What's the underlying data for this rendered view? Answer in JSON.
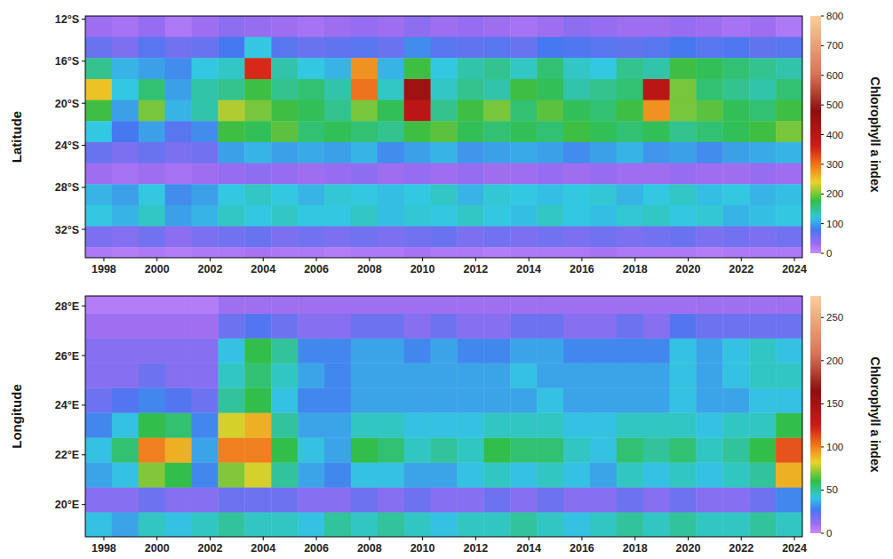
{
  "chart_data": [
    {
      "type": "heatmap",
      "y_label": "Latitude",
      "x": [
        1997.8,
        1998.8,
        1999.8,
        2000.8,
        2001.8,
        2002.8,
        2003.8,
        2004.8,
        2005.8,
        2006.8,
        2007.8,
        2008.8,
        2009.8,
        2010.8,
        2011.8,
        2012.8,
        2013.8,
        2014.8,
        2015.8,
        2016.8,
        2017.8,
        2018.8,
        2019.8,
        2020.8,
        2021.8,
        2022.8,
        2023.8
      ],
      "y": [
        -12.7,
        -14.7,
        -16.7,
        -18.7,
        -20.7,
        -22.7,
        -24.7,
        -26.7,
        -28.7,
        -30.7,
        -32.7,
        -34.7
      ],
      "values": [
        [
          30,
          25,
          35,
          20,
          30,
          40,
          35,
          30,
          25,
          30,
          35,
          30,
          40,
          30,
          35,
          30,
          25,
          30,
          40,
          35,
          30,
          30,
          35,
          30,
          25,
          30,
          20
        ],
        [
          60,
          50,
          70,
          55,
          60,
          80,
          120,
          70,
          60,
          65,
          70,
          60,
          90,
          70,
          65,
          70,
          60,
          80,
          75,
          70,
          65,
          70,
          80,
          70,
          75,
          65,
          70
        ],
        [
          150,
          110,
          100,
          90,
          120,
          130,
          350,
          140,
          120,
          110,
          280,
          110,
          180,
          120,
          140,
          150,
          130,
          160,
          130,
          120,
          150,
          140,
          180,
          170,
          160,
          150,
          140
        ],
        [
          250,
          120,
          160,
          100,
          140,
          150,
          180,
          150,
          160,
          140,
          300,
          130,
          450,
          130,
          150,
          140,
          180,
          170,
          140,
          150,
          160,
          400,
          200,
          160,
          150,
          140,
          160
        ],
        [
          180,
          100,
          200,
          110,
          140,
          220,
          200,
          180,
          170,
          150,
          200,
          170,
          400,
          150,
          180,
          200,
          160,
          190,
          170,
          160,
          180,
          280,
          200,
          190,
          170,
          160,
          180
        ],
        [
          120,
          80,
          100,
          70,
          90,
          180,
          170,
          190,
          160,
          170,
          160,
          150,
          180,
          190,
          170,
          160,
          170,
          160,
          180,
          170,
          160,
          170,
          150,
          160,
          170,
          180,
          200
        ],
        [
          60,
          50,
          60,
          50,
          55,
          100,
          110,
          100,
          105,
          100,
          110,
          90,
          100,
          110,
          95,
          100,
          105,
          100,
          90,
          100,
          110,
          95,
          100,
          90,
          100,
          105,
          110
        ],
        [
          30,
          25,
          30,
          25,
          30,
          35,
          40,
          35,
          30,
          35,
          40,
          30,
          35,
          30,
          35,
          30,
          30,
          35,
          30,
          35,
          30,
          30,
          35,
          30,
          30,
          35,
          30
        ],
        [
          110,
          100,
          120,
          90,
          100,
          120,
          130,
          120,
          110,
          125,
          120,
          115,
          120,
          130,
          110,
          125,
          120,
          115,
          120,
          125,
          110,
          120,
          130,
          115,
          120,
          110,
          115
        ],
        [
          120,
          110,
          130,
          100,
          110,
          130,
          120,
          130,
          120,
          120,
          130,
          115,
          125,
          120,
          130,
          120,
          115,
          130,
          120,
          115,
          125,
          130,
          120,
          125,
          110,
          115,
          120
        ],
        [
          50,
          45,
          55,
          40,
          50,
          55,
          60,
          50,
          55,
          50,
          55,
          50,
          55,
          60,
          50,
          55,
          50,
          55,
          50,
          55,
          50,
          55,
          60,
          50,
          55,
          50,
          55
        ],
        [
          20,
          15,
          20,
          15,
          20,
          20,
          25,
          20,
          20,
          15,
          20,
          20,
          25,
          20,
          20,
          15,
          20,
          20,
          20,
          25,
          20,
          20,
          20,
          15,
          20,
          20,
          20
        ]
      ],
      "xlim": [
        1997.3,
        2024.3
      ],
      "xticks": [
        1998,
        2000,
        2002,
        2004,
        2006,
        2008,
        2010,
        2012,
        2014,
        2016,
        2018,
        2020,
        2022,
        2024
      ],
      "ylim": [
        -34.7,
        -11.7
      ],
      "yticks": [
        {
          "value": -12,
          "label": "12°S"
        },
        {
          "value": -16,
          "label": "16°S"
        },
        {
          "value": -20,
          "label": "20°S"
        },
        {
          "value": -24,
          "label": "24°S"
        },
        {
          "value": -28,
          "label": "28°S"
        },
        {
          "value": -32,
          "label": "32°S"
        }
      ],
      "colorbar_label": "Chlorophyll a index",
      "colorbar_range": [
        0,
        800
      ],
      "colorbar_ticks": [
        0,
        100,
        200,
        300,
        400,
        500,
        600,
        700,
        800
      ]
    },
    {
      "type": "heatmap",
      "y_label": "Longitude",
      "x": [
        1997.8,
        1998.8,
        1999.8,
        2000.8,
        2001.8,
        2002.8,
        2003.8,
        2004.8,
        2005.8,
        2006.8,
        2007.8,
        2008.8,
        2009.8,
        2010.8,
        2011.8,
        2012.8,
        2013.8,
        2014.8,
        2015.8,
        2016.8,
        2017.8,
        2018.8,
        2019.8,
        2020.8,
        2021.8,
        2022.8,
        2023.8
      ],
      "y": [
        19.2,
        20.2,
        21.2,
        22.2,
        23.2,
        24.2,
        25.2,
        26.2,
        27.2,
        28.2
      ],
      "values": [
        [
          40,
          35,
          45,
          40,
          45,
          50,
          45,
          45,
          40,
          50,
          45,
          50,
          45,
          40,
          45,
          45,
          50,
          45,
          40,
          45,
          50,
          45,
          50,
          45,
          45,
          50,
          45
        ],
        [
          15,
          15,
          20,
          15,
          15,
          20,
          20,
          20,
          15,
          15,
          20,
          15,
          20,
          15,
          15,
          20,
          15,
          20,
          15,
          15,
          20,
          15,
          20,
          15,
          15,
          20,
          30
        ],
        [
          35,
          40,
          70,
          60,
          30,
          70,
          80,
          50,
          35,
          30,
          40,
          40,
          35,
          35,
          40,
          45,
          40,
          45,
          40,
          35,
          45,
          40,
          45,
          40,
          45,
          50,
          90
        ],
        [
          40,
          55,
          100,
          90,
          35,
          100,
          100,
          60,
          40,
          35,
          60,
          55,
          45,
          50,
          45,
          60,
          55,
          55,
          45,
          40,
          55,
          50,
          55,
          45,
          50,
          60,
          110
        ],
        [
          30,
          40,
          60,
          55,
          30,
          80,
          90,
          50,
          35,
          35,
          45,
          45,
          40,
          40,
          40,
          45,
          45,
          45,
          40,
          40,
          45,
          45,
          45,
          40,
          45,
          45,
          60
        ],
        [
          20,
          25,
          30,
          25,
          20,
          50,
          60,
          40,
          30,
          30,
          35,
          35,
          35,
          35,
          35,
          35,
          35,
          40,
          35,
          35,
          35,
          35,
          40,
          35,
          35,
          40,
          40
        ],
        [
          15,
          15,
          20,
          15,
          15,
          45,
          55,
          45,
          35,
          30,
          35,
          35,
          35,
          35,
          35,
          35,
          40,
          35,
          35,
          35,
          35,
          35,
          40,
          35,
          40,
          45,
          45
        ],
        [
          15,
          15,
          15,
          15,
          15,
          40,
          60,
          50,
          30,
          30,
          35,
          35,
          30,
          35,
          30,
          30,
          35,
          35,
          30,
          30,
          30,
          30,
          40,
          35,
          40,
          45,
          40
        ],
        [
          10,
          10,
          10,
          10,
          10,
          20,
          25,
          20,
          15,
          15,
          20,
          20,
          15,
          20,
          15,
          15,
          20,
          20,
          15,
          15,
          20,
          15,
          25,
          20,
          20,
          20,
          20
        ],
        [
          5,
          5,
          5,
          5,
          5,
          10,
          10,
          10,
          10,
          10,
          10,
          10,
          10,
          10,
          10,
          10,
          10,
          10,
          10,
          10,
          10,
          10,
          10,
          10,
          10,
          10,
          10
        ]
      ],
      "xlim": [
        1997.3,
        2024.3
      ],
      "xticks": [
        1998,
        2000,
        2002,
        2004,
        2006,
        2008,
        2010,
        2012,
        2014,
        2016,
        2018,
        2020,
        2022,
        2024
      ],
      "ylim": [
        18.7,
        28.4
      ],
      "yticks": [
        {
          "value": 20,
          "label": "20°E"
        },
        {
          "value": 22,
          "label": "22°E"
        },
        {
          "value": 24,
          "label": "24°E"
        },
        {
          "value": 26,
          "label": "26°E"
        },
        {
          "value": 28,
          "label": "28°E"
        }
      ],
      "colorbar_label": "Chlorophyll a index",
      "colorbar_range": [
        0,
        275
      ],
      "colorbar_ticks": [
        0,
        50,
        100,
        150,
        200,
        250
      ]
    }
  ]
}
